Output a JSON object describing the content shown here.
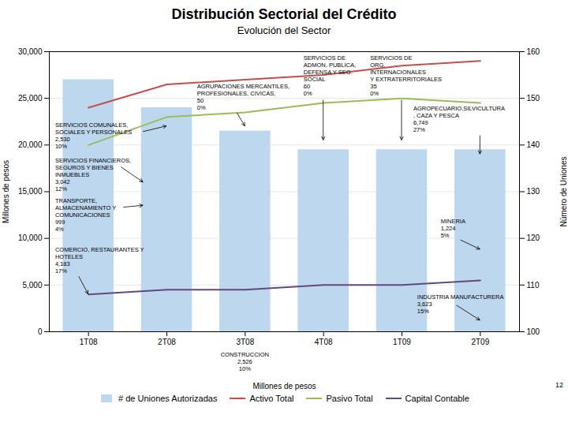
{
  "chart_data": {
    "type": "bar",
    "title": "Distribución Sectorial del Crédito",
    "subtitle": "Evolución del Sector",
    "categories": [
      "1T08",
      "2T08",
      "3T08",
      "4T08",
      "1T09",
      "2T09"
    ],
    "series": [
      {
        "name": "# de Uniones Autorizadas",
        "type": "bar",
        "color": "#BDD7EE",
        "values": [
          27000,
          24000,
          21500,
          19500,
          19500,
          19500
        ]
      },
      {
        "name": "Activo Total",
        "type": "line",
        "axis": "y2",
        "color": "#C0504D",
        "values": [
          148,
          153,
          154,
          155,
          157,
          158
        ]
      },
      {
        "name": "Pasivo Total",
        "type": "line",
        "axis": "y2",
        "color": "#9BBB59",
        "values": [
          140,
          146,
          147,
          149,
          150,
          149
        ]
      },
      {
        "name": "Capital Contable",
        "type": "line",
        "axis": "y2",
        "color": "#604A7B",
        "values": [
          108,
          109,
          109,
          110,
          110,
          111
        ]
      }
    ],
    "xlabel": "Millones de pesos",
    "ylabel": "Millones de pesos",
    "y2label": "Número de Uniones",
    "ylim": [
      0,
      30000
    ],
    "yticks": [
      0,
      {
        "value": 5000,
        "label": "5,000"
      },
      {
        "value": 10000,
        "label": "10,000"
      },
      {
        "value": 15000,
        "label": "15,000"
      },
      {
        "value": 20000,
        "label": "20,000"
      },
      {
        "value": 25000,
        "label": "25,000"
      },
      {
        "value": 30000,
        "label": "30,000"
      }
    ],
    "y2lim": [
      100,
      160
    ],
    "y2ticks": [
      100,
      110,
      120,
      130,
      140,
      150,
      160
    ],
    "grid": true,
    "legend": "bottom",
    "annotations": [
      "SERVICIOS COMUNALES,\nSOCIALES Y PERSONALES\n2,530\n10%",
      "AGRUPACIONES MERCANTILES,\nPROFESIONALES, CIVICAS,\n50\n0%",
      "SERVICIOS DE\nADMON. PUBLICA,\nDEFENSA Y SEG.\nSOCIAL\n60\n0%",
      "SERVICIOS DE\nORG.\nINTERNACIONALES\nY EXTRATERRITORIALES\n35\n0%",
      "SERVICIOS FINANCIEROS,\nSEGUROS Y BIENES\nINMUEBLES\n3,042\n12%",
      "TRANSPORTE,\nALMACENAMIENTO Y\nCOMUNICACIONES\n999\n4%",
      "COMERCIO, RESTAURANTES Y\nHOTELES\n4,183\n17%",
      "AGROPECUARIO,SILVICULTURA\n, CAZA Y PESCA\n6,749\n27%",
      "MINERIA\n1,224\n5%",
      "INDUSTRIA MANUFACTURERA\n3,623\n15%",
      "CONSTRUCCION\n2,526\n10%",
      "12"
    ]
  }
}
